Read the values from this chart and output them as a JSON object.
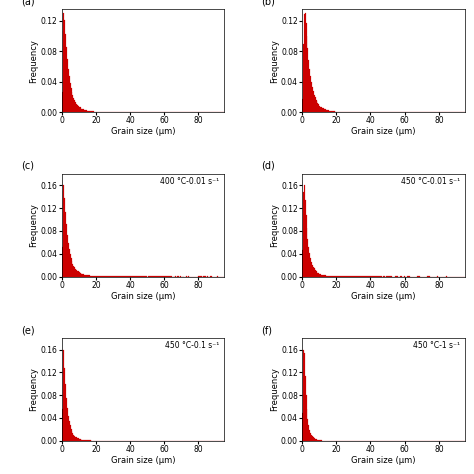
{
  "subplots": [
    {
      "label": "(a)",
      "annotation": "",
      "ylim": [
        0,
        0.135
      ],
      "yticks": [
        0.0,
        0.04,
        0.08,
        0.12
      ],
      "mu": 1.0,
      "sigma": 0.85,
      "peak": 0.13,
      "xlim": [
        0,
        95
      ]
    },
    {
      "label": "(b)",
      "annotation": "",
      "ylim": [
        0,
        0.135
      ],
      "yticks": [
        0.0,
        0.04,
        0.08,
        0.12
      ],
      "mu": 1.1,
      "sigma": 0.8,
      "peak": 0.13,
      "xlim": [
        0,
        95
      ]
    },
    {
      "label": "(c)",
      "annotation": "400 °C-0.01 s⁻¹",
      "ylim": [
        0,
        0.18
      ],
      "yticks": [
        0.0,
        0.04,
        0.08,
        0.12,
        0.16
      ],
      "mu": 0.9,
      "sigma": 0.9,
      "peak": 0.16,
      "xlim": [
        0,
        95
      ]
    },
    {
      "label": "(d)",
      "annotation": "450 °C-0.01 s⁻¹",
      "ylim": [
        0,
        0.18
      ],
      "yticks": [
        0.0,
        0.04,
        0.08,
        0.12,
        0.16
      ],
      "mu": 0.8,
      "sigma": 0.85,
      "peak": 0.16,
      "xlim": [
        0,
        95
      ]
    },
    {
      "label": "(e)",
      "annotation": "450 °C-0.1 s⁻¹",
      "ylim": [
        0,
        0.18
      ],
      "yticks": [
        0.0,
        0.04,
        0.08,
        0.12,
        0.16
      ],
      "mu": 0.7,
      "sigma": 0.85,
      "peak": 0.16,
      "xlim": [
        0,
        95
      ]
    },
    {
      "label": "(f)",
      "annotation": "450 °C-1 s⁻¹",
      "ylim": [
        0,
        0.18
      ],
      "yticks": [
        0.0,
        0.04,
        0.08,
        0.12,
        0.16
      ],
      "mu": 0.5,
      "sigma": 0.75,
      "peak": 0.16,
      "xlim": [
        0,
        95
      ]
    }
  ],
  "xticks": [
    0,
    20,
    40,
    60,
    80
  ],
  "xlabel": "Grain size (μm)",
  "ylabel": "Frequency",
  "bar_color": "#cc0000",
  "bar_edge_color": "#cc0000",
  "n_bins": 180,
  "background_color": "#ffffff",
  "fig_bg": "#ffffff"
}
